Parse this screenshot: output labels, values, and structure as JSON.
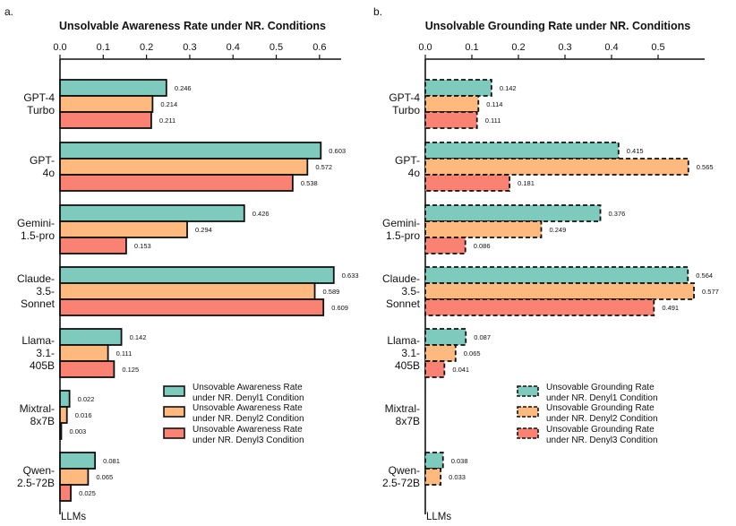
{
  "chart_data": [
    {
      "type": "bar",
      "orientation": "horizontal",
      "panel_label": "a.",
      "title": "Unsolvable Awareness Rate under NR. Conditions",
      "xlabel": "",
      "ylabel": "LLMs",
      "xlim": [
        0,
        0.65
      ],
      "xticks": [
        "0.0",
        "0.1",
        "0.2",
        "0.3",
        "0.4",
        "0.5",
        "0.6"
      ],
      "xtick_values": [
        0,
        0.1,
        0.2,
        0.3,
        0.4,
        0.5,
        0.6
      ],
      "bar_style": "solid",
      "categories": [
        [
          "GPT-4",
          "Turbo"
        ],
        [
          "GPT-",
          "4o"
        ],
        [
          "Gemini-",
          "1.5-pro"
        ],
        [
          "Claude-",
          "3.5-",
          "Sonnet"
        ],
        [
          "Llama-",
          "3.1-",
          "405B"
        ],
        [
          "Mixtral-",
          "8x7B"
        ],
        [
          "Qwen-",
          "2.5-72B"
        ]
      ],
      "series": [
        {
          "name": "Unsovable Awareness Rate under NR. Denyl1 Condition",
          "color": "#7ECBBE",
          "values": [
            0.246,
            0.603,
            0.426,
            0.633,
            0.142,
            0.022,
            0.081
          ],
          "labels": [
            "0.246",
            "0.603",
            "0.426",
            "0.633",
            "0.142",
            "0.022",
            "0.081"
          ]
        },
        {
          "name": "Unsovable Awareness Rate under NR. Denyl2 Condition",
          "color": "#FEB97E",
          "values": [
            0.214,
            0.572,
            0.294,
            0.589,
            0.111,
            0.016,
            0.065
          ],
          "labels": [
            "0.214",
            "0.572",
            "0.294",
            "0.589",
            "0.111",
            "0.016",
            "0.065"
          ]
        },
        {
          "name": "Unsovable Awareness Rate under NR. Denyl3 Condition",
          "color": "#F98272",
          "values": [
            0.211,
            0.538,
            0.153,
            0.609,
            0.125,
            0.003,
            0.025
          ],
          "labels": [
            "0.211",
            "0.538",
            "0.153",
            "0.609",
            "0.125",
            "0.003",
            "0.025"
          ]
        }
      ],
      "legend_items": [
        [
          "Unsovable Awareness Rate",
          "under NR. Denyl1 Condition"
        ],
        [
          "Unsovable Awareness Rate",
          "under NR. Denyl2 Condition"
        ],
        [
          "Unsovable Awareness Rate",
          "under NR. Denyl3 Condition"
        ]
      ],
      "legend_position": "lower-right"
    },
    {
      "type": "bar",
      "orientation": "horizontal",
      "panel_label": "b.",
      "title": "Unsolvable Grounding Rate under NR. Conditions",
      "xlabel": "",
      "ylabel": "LLMs",
      "xlim": [
        0,
        0.6
      ],
      "xticks": [
        "0.0",
        "0.1",
        "0.2",
        "0.3",
        "0.4",
        "0.5"
      ],
      "xtick_values": [
        0,
        0.1,
        0.2,
        0.3,
        0.4,
        0.5
      ],
      "bar_style": "dashed",
      "categories": [
        [
          "GPT-4",
          "Turbo"
        ],
        [
          "GPT-",
          "4o"
        ],
        [
          "Gemini-",
          "1.5-pro"
        ],
        [
          "Claude-",
          "3.5-",
          "Sonnet"
        ],
        [
          "Llama-",
          "3.1-",
          "405B"
        ],
        [
          "Mixtral-",
          "8x7B"
        ],
        [
          "Qwen-",
          "2.5-72B"
        ]
      ],
      "series": [
        {
          "name": "Unsovable Grounding Rate under NR. Denyl1 Condition",
          "color": "#7ECBBE",
          "values": [
            0.142,
            0.415,
            0.376,
            0.564,
            0.087,
            0,
            0.038
          ],
          "labels": [
            "0.142",
            "0.415",
            "0.376",
            "0.564",
            "0.087",
            "",
            "0.038"
          ]
        },
        {
          "name": "Unsovable Grounding Rate under NR. Denyl2 Condition",
          "color": "#FEB97E",
          "values": [
            0.114,
            0.565,
            0.249,
            0.577,
            0.065,
            0,
            0.033
          ],
          "labels": [
            "0.114",
            "0.565",
            "0.249",
            "0.577",
            "0.065",
            "",
            "0.033"
          ]
        },
        {
          "name": "Unsovable Grounding Rate under NR. Denyl3 Condition",
          "color": "#F98272",
          "values": [
            0.111,
            0.181,
            0.086,
            0.491,
            0.041,
            0,
            0
          ],
          "labels": [
            "0.111",
            "0.181",
            "0.086",
            "0.491",
            "0.041",
            "",
            ""
          ]
        }
      ],
      "legend_items": [
        [
          "Unsovable Grounding Rate",
          "under NR. Denyl1 Condition"
        ],
        [
          "Unsovable Grounding Rate",
          "under NR. Denyl2 Condition"
        ],
        [
          "Unsovable Grounding Rate",
          "under NR. Denyl3 Condition"
        ]
      ],
      "legend_position": "lower-right"
    }
  ]
}
